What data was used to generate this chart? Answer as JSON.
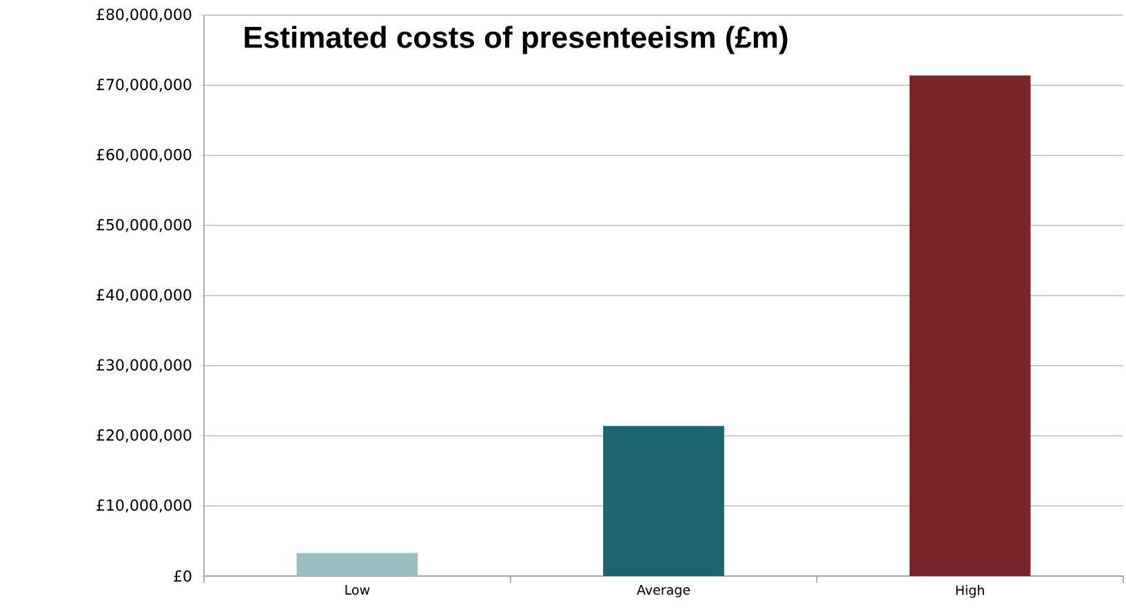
{
  "chart_data": {
    "type": "bar",
    "title": "Estimated costs of presenteeism (£m)",
    "categories": [
      "Low",
      "Average",
      "High"
    ],
    "values": [
      3300000,
      21400000,
      71400000
    ],
    "colors": [
      "#9bbfc1",
      "#1a6570",
      "#7a2329"
    ],
    "ylim": [
      0,
      80000000
    ],
    "yticks": [
      {
        "value": 0,
        "label": "£0"
      },
      {
        "value": 10000000,
        "label": "£10,000,000"
      },
      {
        "value": 20000000,
        "label": "£20,000,000"
      },
      {
        "value": 30000000,
        "label": "£30,000,000"
      },
      {
        "value": 40000000,
        "label": "£40,000,000"
      },
      {
        "value": 50000000,
        "label": "£50,000,000"
      },
      {
        "value": 60000000,
        "label": "£60,000,000"
      },
      {
        "value": 70000000,
        "label": "£70,000,000"
      },
      {
        "value": 80000000,
        "label": "£80,000,000"
      }
    ],
    "grid": "y"
  }
}
